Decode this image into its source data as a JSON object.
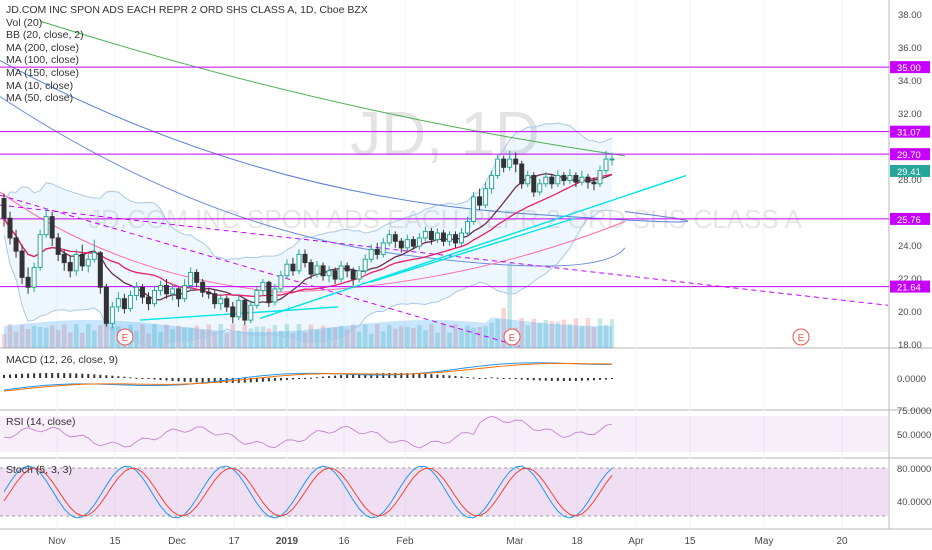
{
  "chart_data": {
    "type": "candlestick",
    "symbol_title": "JD.COM INC SPON ADS EACH REPR 2 ORD SHS CLASS A, 1D, Cboe BZX",
    "watermark": "JD, 1D",
    "watermark_name": "JD.COM INC SPON ADS EACH REPR 2 ORD SHS CLASS A",
    "indicators": [
      "Vol (20)",
      "BB (20, close, 2)",
      "MA (200, close)",
      "MA (100, close)",
      "MA (150, close)",
      "MA (10, close)",
      "MA (50, close)"
    ],
    "price_axis": {
      "ticks": [
        "38.00",
        "36.00",
        "34.00",
        "32.00",
        "28.00",
        "24.00",
        "22.00",
        "20.00",
        "18.00"
      ],
      "ylim": [
        17.9,
        38.6
      ]
    },
    "x_labels": [
      "Nov",
      "15",
      "Dec",
      "17",
      "2019",
      "16",
      "Feb",
      "Mar",
      "18",
      "Apr",
      "15",
      "May",
      "20"
    ],
    "horizontal_levels": [
      {
        "label": "35.00",
        "value": 35.0
      },
      {
        "label": "31.07",
        "value": 31.07
      },
      {
        "label": "29.70",
        "value": 29.7
      },
      {
        "label": "25.76",
        "value": 25.76
      },
      {
        "label": "21.64",
        "value": 21.64
      }
    ],
    "last_price": "29.41",
    "earnings_markers": [
      "E",
      "E",
      "E"
    ],
    "candles": [
      [
        27,
        25.8,
        27.3,
        25.3
      ],
      [
        25.8,
        24.6,
        26.2,
        24.2
      ],
      [
        24.6,
        23.8,
        25.1,
        23.4
      ],
      [
        23.8,
        22.2,
        24.2,
        21.8
      ],
      [
        22.2,
        21.6,
        22.8,
        21.2
      ],
      [
        21.6,
        22.8,
        23.1,
        21.3
      ],
      [
        22.8,
        24.8,
        25.1,
        22.6
      ],
      [
        24.8,
        25.9,
        26.4,
        24.6
      ],
      [
        25.9,
        24.6,
        26.2,
        24.1
      ],
      [
        24.6,
        23.6,
        24.9,
        23.2
      ],
      [
        23.6,
        23.1,
        23.9,
        22.6
      ],
      [
        23.1,
        22.6,
        23.5,
        22.2
      ],
      [
        22.6,
        23.6,
        23.9,
        22.3
      ],
      [
        23.6,
        22.9,
        24.2,
        22.6
      ],
      [
        22.9,
        23.3,
        23.6,
        22.5
      ],
      [
        23.3,
        23.7,
        24.5,
        23.1
      ],
      [
        23.7,
        21.6,
        23.8,
        21.2
      ],
      [
        21.6,
        19.4,
        21.8,
        19.2
      ],
      [
        19.4,
        20.4,
        20.7,
        19.1
      ],
      [
        20.4,
        20.9,
        21.3,
        20.1
      ],
      [
        20.9,
        20.3,
        21.2,
        20.0
      ],
      [
        20.3,
        21.1,
        21.4,
        20.1
      ],
      [
        21.1,
        21.6,
        21.9,
        20.8
      ],
      [
        21.6,
        21.0,
        21.8,
        20.6
      ],
      [
        21.0,
        20.6,
        21.3,
        20.2
      ],
      [
        20.6,
        21.4,
        21.7,
        20.4
      ],
      [
        21.4,
        21.7,
        22.0,
        21.1
      ],
      [
        21.7,
        21.2,
        22.1,
        20.9
      ],
      [
        21.2,
        21.5,
        21.8,
        20.8
      ],
      [
        21.5,
        20.9,
        21.6,
        20.4
      ],
      [
        20.9,
        21.7,
        22.1,
        20.7
      ],
      [
        21.7,
        22.5,
        22.8,
        21.4
      ],
      [
        22.5,
        21.9,
        22.7,
        21.6
      ],
      [
        21.9,
        21.3,
        22.1,
        21.0
      ],
      [
        21.3,
        21.2,
        21.5,
        20.9
      ],
      [
        21.2,
        20.6,
        21.4,
        20.3
      ],
      [
        20.6,
        20.9,
        21.2,
        20.2
      ],
      [
        20.9,
        20.4,
        21.1,
        20.1
      ],
      [
        20.4,
        19.8,
        20.7,
        19.4
      ],
      [
        19.8,
        20.8,
        21.1,
        19.6
      ],
      [
        20.8,
        19.6,
        20.9,
        19.3
      ],
      [
        19.6,
        20.5,
        20.8,
        19.4
      ],
      [
        20.5,
        21.4,
        21.6,
        20.3
      ],
      [
        21.4,
        21.9,
        22.1,
        21.1
      ],
      [
        21.9,
        20.7,
        22.0,
        20.4
      ],
      [
        20.7,
        21.5,
        21.8,
        20.5
      ],
      [
        21.5,
        22.3,
        22.6,
        21.3
      ],
      [
        22.3,
        23.0,
        23.3,
        22.1
      ],
      [
        23.0,
        22.6,
        23.4,
        22.3
      ],
      [
        22.6,
        23.6,
        23.9,
        22.4
      ],
      [
        23.6,
        23.1,
        23.9,
        22.8
      ],
      [
        23.1,
        22.4,
        23.3,
        22.1
      ],
      [
        22.4,
        22.9,
        23.2,
        22.2
      ],
      [
        22.9,
        22.3,
        23.1,
        22.0
      ],
      [
        22.3,
        22.6,
        22.9,
        21.9
      ],
      [
        22.6,
        22.1,
        22.8,
        21.8
      ],
      [
        22.1,
        22.9,
        23.2,
        21.9
      ],
      [
        22.9,
        22.6,
        23.1,
        22.2
      ],
      [
        22.6,
        22.1,
        22.8,
        21.7
      ],
      [
        22.1,
        22.6,
        22.9,
        21.9
      ],
      [
        22.6,
        23.3,
        23.6,
        22.4
      ],
      [
        23.3,
        23.9,
        24.2,
        23.1
      ],
      [
        23.9,
        23.6,
        24.3,
        23.3
      ],
      [
        23.6,
        24.3,
        24.6,
        23.4
      ],
      [
        24.3,
        24.8,
        25.1,
        24.1
      ],
      [
        24.8,
        24.4,
        25.0,
        24.0
      ],
      [
        24.4,
        24.0,
        24.6,
        23.7
      ],
      [
        24.0,
        24.5,
        24.8,
        23.8
      ],
      [
        24.5,
        24.1,
        24.7,
        23.9
      ],
      [
        24.1,
        24.6,
        24.9,
        23.9
      ],
      [
        24.6,
        25.0,
        25.3,
        24.4
      ],
      [
        25.0,
        24.5,
        25.2,
        24.2
      ],
      [
        24.5,
        24.9,
        25.2,
        24.3
      ],
      [
        24.9,
        24.4,
        25.1,
        24.1
      ],
      [
        24.4,
        24.8,
        25.0,
        24.1
      ],
      [
        24.8,
        24.3,
        25.0,
        24.0
      ],
      [
        24.3,
        24.9,
        25.2,
        24.1
      ],
      [
        24.9,
        25.6,
        25.9,
        24.7
      ],
      [
        25.6,
        27.1,
        27.4,
        25.4
      ],
      [
        27.1,
        26.6,
        27.6,
        26.3
      ],
      [
        26.6,
        27.6,
        28.0,
        26.4
      ],
      [
        27.6,
        28.4,
        28.7,
        27.3
      ],
      [
        28.4,
        29.4,
        29.7,
        28.2
      ],
      [
        29.4,
        28.9,
        29.6,
        28.6
      ],
      [
        28.9,
        29.4,
        29.9,
        28.7
      ],
      [
        29.4,
        29.1,
        29.8,
        28.6
      ],
      [
        29.1,
        27.9,
        29.3,
        27.6
      ],
      [
        27.9,
        28.4,
        28.7,
        27.7
      ],
      [
        28.4,
        27.4,
        28.6,
        27.1
      ],
      [
        27.4,
        27.9,
        28.2,
        27.2
      ],
      [
        27.9,
        28.3,
        28.6,
        27.7
      ],
      [
        28.3,
        27.9,
        28.5,
        27.6
      ],
      [
        27.9,
        28.4,
        28.7,
        27.7
      ],
      [
        28.4,
        28.1,
        28.6,
        27.8
      ],
      [
        28.1,
        28.4,
        28.8,
        27.9
      ],
      [
        28.4,
        28.0,
        28.6,
        27.7
      ],
      [
        28.0,
        28.3,
        28.7,
        27.8
      ],
      [
        28.3,
        28.0,
        28.5,
        27.6
      ],
      [
        28.0,
        27.9,
        28.3,
        27.5
      ],
      [
        27.9,
        28.7,
        29.0,
        27.7
      ],
      [
        28.7,
        29.4,
        29.9,
        28.5
      ],
      [
        29.4,
        29.41,
        29.8,
        29.0
      ]
    ],
    "macd_axis": {
      "ticks": [
        "0.0000"
      ]
    },
    "macd_label": "MACD (12, 26, close, 9)",
    "rsi_axis": {
      "ticks": [
        "75.0000",
        "50.0000"
      ]
    },
    "rsi_label": "RSI (14, close)",
    "stoch_axis": {
      "ticks": [
        "80.0000",
        "40.0000"
      ]
    },
    "stoch_label": "Stoch (5, 3, 3)",
    "colors": {
      "up": "#26a69a",
      "down": "#333333",
      "hline": "#c600ff",
      "cyan": "#00e5e5",
      "ma200": "#4caf50",
      "ma100": "#5b7fd4",
      "ma150": "#6f8fd8",
      "ma10": "#e91e63",
      "ma50": "#ff6ea8",
      "bb": "#90caf9"
    }
  }
}
